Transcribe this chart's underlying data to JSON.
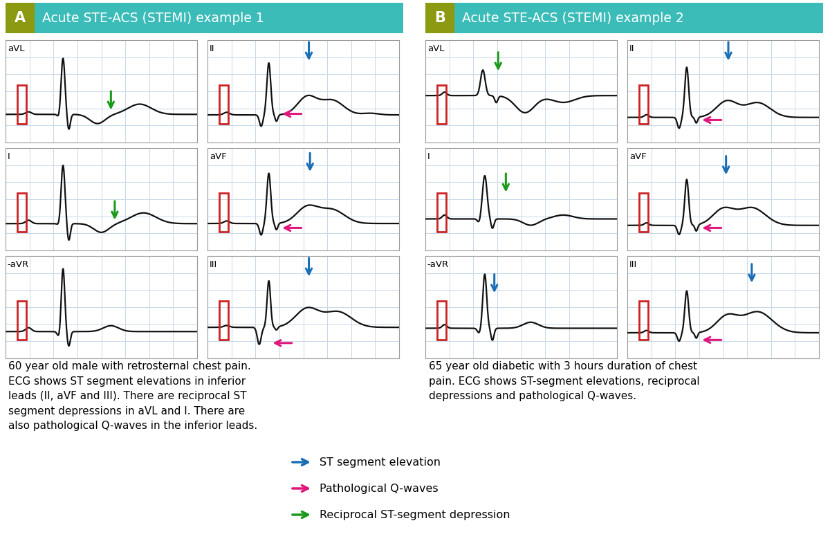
{
  "title_A": "Acute STE-ACS (STEMI) example 1",
  "title_B": "Acute STE-ACS (STEMI) example 2",
  "header_color": "#3bbcb8",
  "header_label_color": "#8b9a10",
  "text_A": "60 year old male with retrosternal chest pain.\nECG shows ST segment elevations in inferior\nleads (II, aVF and III). There are reciprocal ST\nsegment depressions in aVL and I. There are\nalso pathological Q-waves in the inferior leads.",
  "text_B": "65 year old diabetic with 3 hours duration of chest\npain. ECG shows ST-segment elevations, reciprocal\ndepressions and pathological Q-waves.",
  "legend_blue": "ST segment elevation",
  "legend_pink": "Pathological Q-waves",
  "legend_green": "Reciprocal ST-segment depression",
  "arrow_blue": "#1a6eb5",
  "arrow_pink": "#e0177c",
  "arrow_green": "#1a9a1a",
  "grid_color": "#c8d8e8",
  "ecg_color": "#111111",
  "box_color": "#cc2222",
  "background": "#ffffff",
  "fig_width": 12.0,
  "fig_height": 8.08
}
